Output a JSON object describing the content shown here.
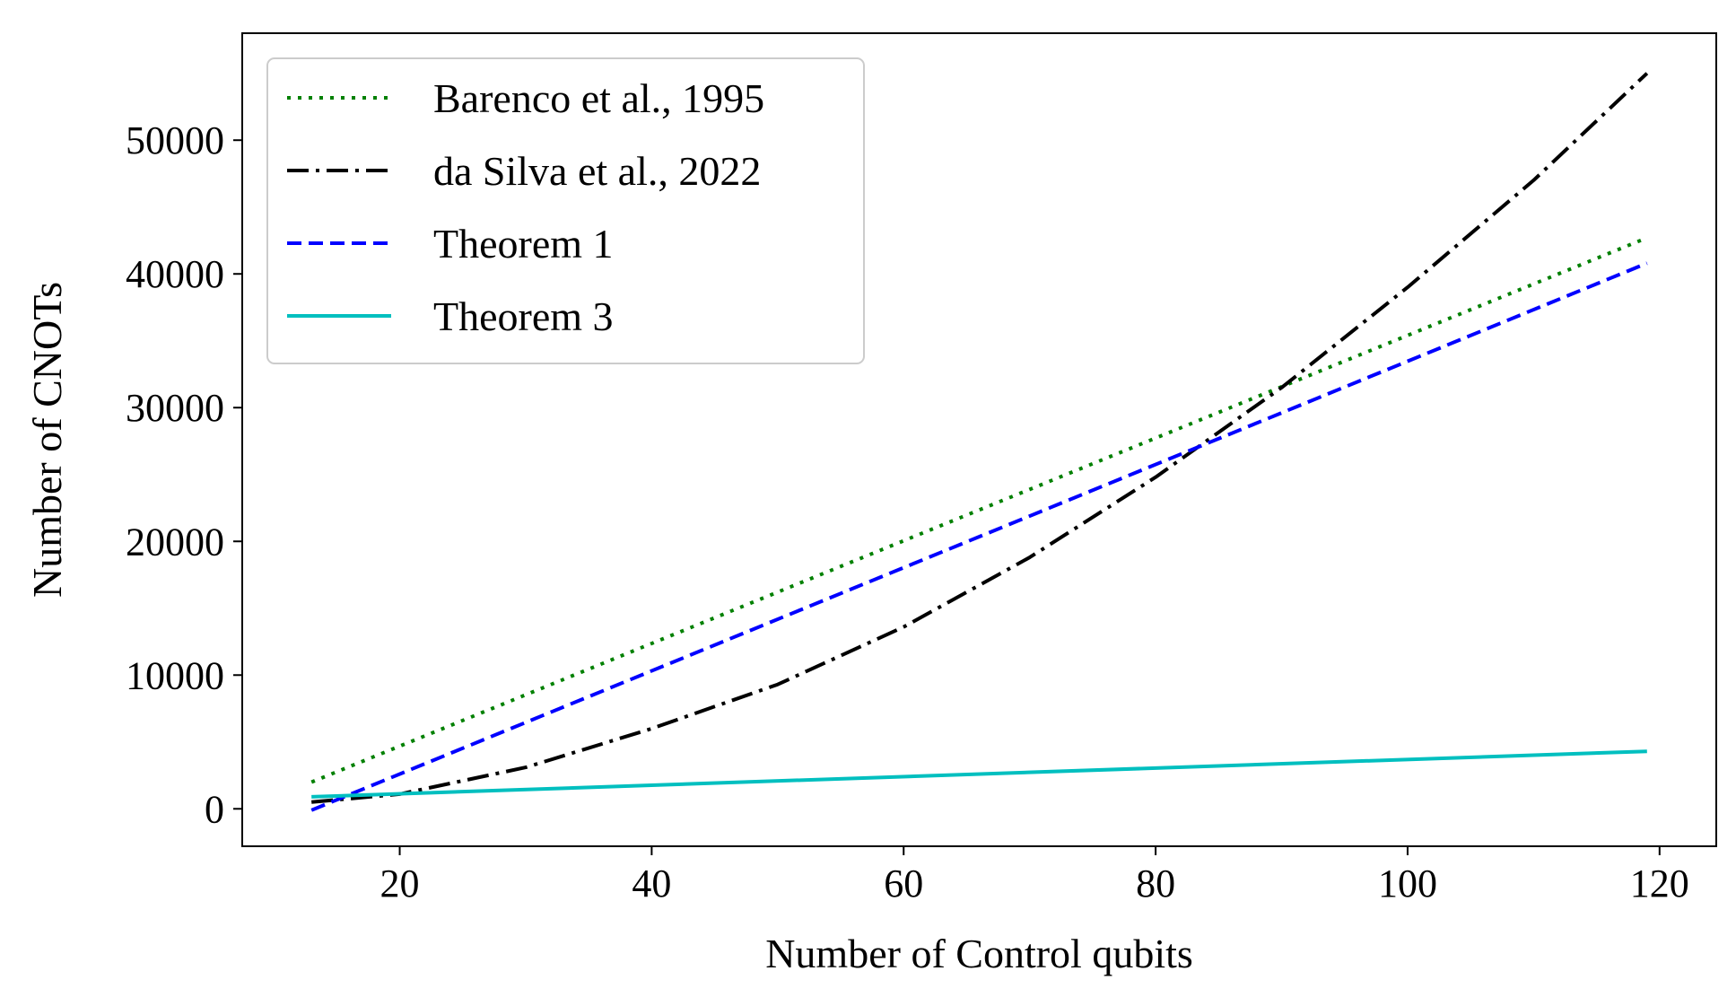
{
  "chart_data": {
    "type": "line",
    "title": "",
    "xlabel": "Number of Control qubits",
    "ylabel": "Number of CNOTs",
    "xlim": [
      7.5,
      124.5
    ],
    "ylim": [
      -2800,
      58000
    ],
    "xticks": [
      20,
      40,
      60,
      80,
      100,
      120
    ],
    "yticks": [
      0,
      10000,
      20000,
      30000,
      40000,
      50000
    ],
    "grid": false,
    "legend_position": "upper-left",
    "series": [
      {
        "name": "Barenco et al., 1995",
        "color": "#008000",
        "style": "dotted",
        "x": [
          13,
          119
        ],
        "y": [
          2000,
          42700
        ]
      },
      {
        "name": "da Silva et al., 2022",
        "color": "#000000",
        "style": "dashdot",
        "x": [
          13,
          20,
          30,
          40,
          50,
          60,
          70,
          80,
          90,
          100,
          110,
          119
        ],
        "y": [
          500,
          1100,
          3100,
          6000,
          9300,
          13600,
          18800,
          24800,
          31500,
          39000,
          47000,
          55000
        ]
      },
      {
        "name": "Theorem 1",
        "color": "#0000ff",
        "style": "dashed",
        "x": [
          13,
          119
        ],
        "y": [
          -100,
          40800
        ]
      },
      {
        "name": "Theorem 3",
        "color": "#00bfbf",
        "style": "solid",
        "x": [
          13,
          119
        ],
        "y": [
          900,
          4300
        ]
      }
    ]
  }
}
